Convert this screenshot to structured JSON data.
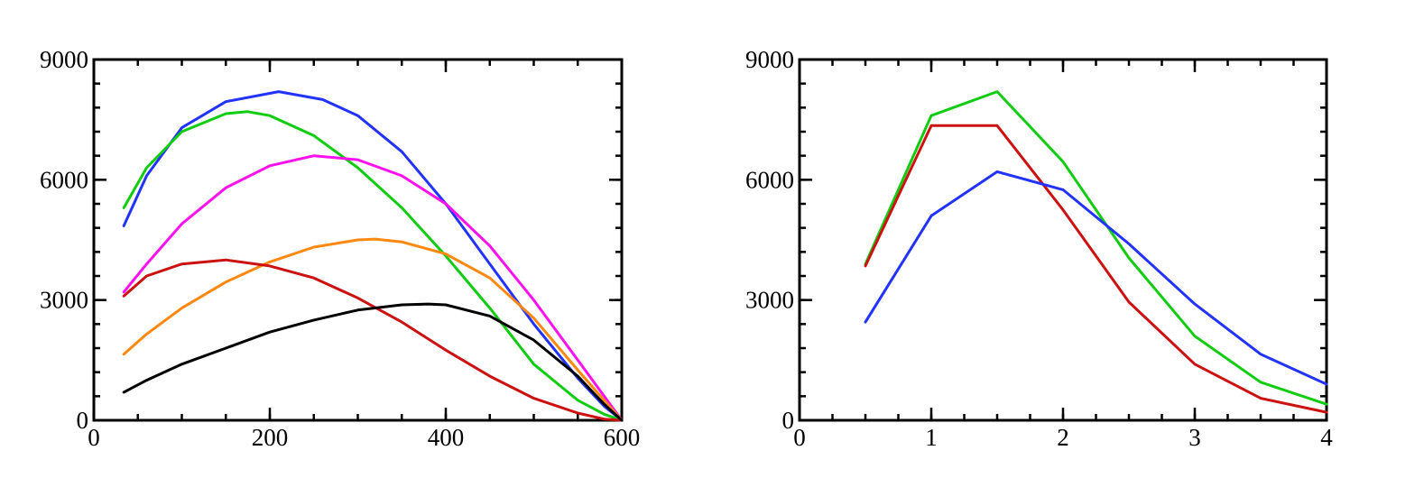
{
  "chart_data": [
    {
      "type": "line",
      "title": "",
      "xlabel": "",
      "ylabel": "",
      "xlim": [
        0,
        600
      ],
      "ylim": [
        0,
        9000
      ],
      "x_ticks": [
        "0",
        "200",
        "400",
        "600"
      ],
      "y_ticks": [
        "0",
        "3000",
        "6000",
        "9000"
      ],
      "grid": false,
      "legend": "none",
      "series": [
        {
          "color": "#2233ff",
          "x": [
            34,
            60,
            100,
            150,
            210,
            260,
            300,
            350,
            400,
            450,
            500,
            550,
            580,
            600
          ],
          "y": [
            4850,
            6100,
            7300,
            7950,
            8200,
            8000,
            7600,
            6700,
            5400,
            3900,
            2400,
            1050,
            350,
            0
          ]
        },
        {
          "color": "#11cc11",
          "x": [
            34,
            60,
            100,
            150,
            175,
            200,
            250,
            300,
            350,
            400,
            450,
            500,
            550,
            580,
            600
          ],
          "y": [
            5300,
            6300,
            7200,
            7650,
            7700,
            7600,
            7100,
            6300,
            5300,
            4100,
            2800,
            1400,
            500,
            150,
            0
          ]
        },
        {
          "color": "#ff11ee",
          "x": [
            34,
            60,
            100,
            150,
            200,
            250,
            300,
            350,
            400,
            450,
            500,
            550,
            580,
            600
          ],
          "y": [
            3200,
            3900,
            4900,
            5800,
            6350,
            6600,
            6500,
            6100,
            5400,
            4350,
            3000,
            1500,
            600,
            0
          ]
        },
        {
          "color": "#ff8811",
          "x": [
            34,
            60,
            100,
            150,
            200,
            250,
            300,
            320,
            350,
            400,
            450,
            500,
            550,
            580,
            600
          ],
          "y": [
            1650,
            2150,
            2800,
            3450,
            3950,
            4320,
            4500,
            4520,
            4450,
            4150,
            3550,
            2550,
            1250,
            500,
            0
          ]
        },
        {
          "color": "#cc1111",
          "x": [
            34,
            60,
            100,
            150,
            200,
            250,
            300,
            350,
            400,
            450,
            500,
            550,
            580,
            600
          ],
          "y": [
            3100,
            3600,
            3900,
            4000,
            3850,
            3550,
            3050,
            2450,
            1750,
            1100,
            550,
            180,
            30,
            0
          ]
        },
        {
          "color": "#000000",
          "x": [
            34,
            60,
            100,
            150,
            200,
            250,
            300,
            350,
            380,
            400,
            450,
            500,
            550,
            580,
            600
          ],
          "y": [
            700,
            1000,
            1400,
            1800,
            2200,
            2500,
            2750,
            2880,
            2900,
            2880,
            2600,
            2000,
            1100,
            400,
            0
          ]
        }
      ]
    },
    {
      "type": "line",
      "title": "",
      "xlabel": "",
      "ylabel": "",
      "xlim": [
        0,
        4
      ],
      "ylim": [
        0,
        9000
      ],
      "x_ticks": [
        "0",
        "1",
        "2",
        "3",
        "4"
      ],
      "y_ticks": [
        "0",
        "3000",
        "6000",
        "9000"
      ],
      "grid": false,
      "legend": "none",
      "series": [
        {
          "color": "#11cc11",
          "x": [
            0.5,
            1,
            1.5,
            2,
            2.5,
            3,
            3.5,
            4
          ],
          "y": [
            3900,
            7600,
            8200,
            6450,
            4050,
            2100,
            950,
            400
          ]
        },
        {
          "color": "#cc1111",
          "x": [
            0.5,
            1,
            1.5,
            2,
            2.5,
            3,
            3.5,
            4
          ],
          "y": [
            3850,
            7350,
            7350,
            5250,
            2950,
            1400,
            550,
            200
          ]
        },
        {
          "color": "#2233ff",
          "x": [
            0.5,
            1,
            1.5,
            2,
            2.5,
            3,
            3.5,
            4
          ],
          "y": [
            2450,
            5100,
            6200,
            5750,
            4400,
            2900,
            1650,
            900
          ]
        }
      ]
    }
  ]
}
